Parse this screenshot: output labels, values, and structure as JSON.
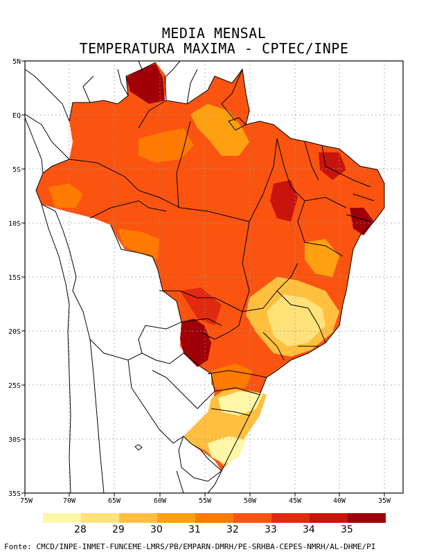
{
  "title_line1": "MEDIA MENSAL",
  "title_line2": "TEMPERATURA MAXIMA - CPTEC/INPE",
  "lat_labels": [
    "5N",
    "EQ",
    "5S",
    "10S",
    "15S",
    "20S",
    "25S",
    "30S",
    "35S"
  ],
  "lon_labels": [
    "75W",
    "70W",
    "65W",
    "60W",
    "55W",
    "50W",
    "45W",
    "40W",
    "35W"
  ],
  "colorbar": {
    "colors": [
      "#fff7a8",
      "#ffe27a",
      "#ffc040",
      "#ffa010",
      "#ff7a00",
      "#fa5410",
      "#e02a10",
      "#c8140c",
      "#a00008"
    ],
    "labels": [
      "28",
      "29",
      "30",
      "31",
      "32",
      "33",
      "34",
      "35"
    ]
  },
  "footer": "Fonte: CMCD/INPE-INMET-FUNCEME-LMRS/PB/EMPARN-DMRH/PE-SRHBA-CEPES-NMRH/AL-DHME/PI"
}
